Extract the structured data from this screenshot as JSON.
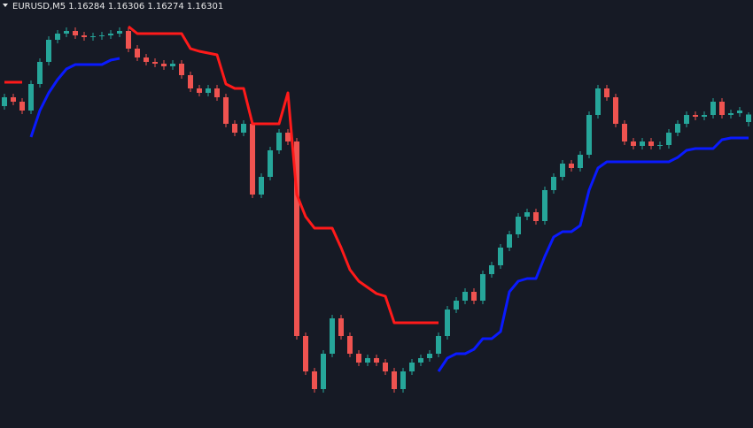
{
  "chart_data": {
    "type": "candlestick",
    "title": "EURUSD,M5  1.16284 1.16306 1.16274 1.16301",
    "up_color": "#26a69a",
    "down_color": "#ef5350",
    "ylim": [
      1.15592,
      1.1656
    ],
    "open": [
      1.1632,
      1.1634,
      1.1633,
      1.1631,
      1.1637,
      1.1642,
      1.1647,
      1.16484,
      1.1649,
      1.1648,
      1.16476,
      1.16478,
      1.1648,
      1.16484,
      1.1649,
      1.1645,
      1.1643,
      1.1642,
      1.16416,
      1.1641,
      1.16416,
      1.1639,
      1.1636,
      1.1635,
      1.1636,
      1.1634,
      1.1628,
      1.1626,
      1.1628,
      1.1612,
      1.1616,
      1.1622,
      1.1626,
      1.1624,
      1.158,
      1.1572,
      1.1568,
      1.1576,
      1.1584,
      1.158,
      1.1576,
      1.1574,
      1.1575,
      1.1574,
      1.1572,
      1.1568,
      1.1572,
      1.1574,
      1.1575,
      1.1576,
      1.158,
      1.1586,
      1.1588,
      1.159,
      1.1588,
      1.1594,
      1.1596,
      1.16,
      1.1603,
      1.1607,
      1.1608,
      1.1606,
      1.1613,
      1.1616,
      1.1619,
      1.1618,
      1.1621,
      1.163,
      1.1636,
      1.1634,
      1.1628,
      1.1624,
      1.1623,
      1.1624,
      1.1623,
      1.16232,
      1.1626,
      1.1628,
      1.163,
      1.16296,
      1.163,
      1.1633,
      1.163,
      1.16304,
      1.16284
    ],
    "high": [
      1.16348,
      1.16348,
      1.16338,
      1.16378,
      1.16428,
      1.16478,
      1.16492,
      1.16498,
      1.16498,
      1.16488,
      1.16486,
      1.16488,
      1.16492,
      1.16498,
      1.16498,
      1.16458,
      1.16438,
      1.16428,
      1.16424,
      1.16424,
      1.16424,
      1.16398,
      1.16368,
      1.16368,
      1.16368,
      1.16348,
      1.16288,
      1.16288,
      1.16288,
      1.16168,
      1.16228,
      1.16268,
      1.16268,
      1.16248,
      1.15808,
      1.15728,
      1.15768,
      1.15848,
      1.15848,
      1.15808,
      1.15768,
      1.15758,
      1.15758,
      1.15748,
      1.15728,
      1.15728,
      1.15748,
      1.15758,
      1.15768,
      1.15808,
      1.15868,
      1.15888,
      1.15908,
      1.15908,
      1.15948,
      1.15968,
      1.16008,
      1.16038,
      1.16078,
      1.16088,
      1.16088,
      1.16138,
      1.16168,
      1.16198,
      1.16198,
      1.16218,
      1.16308,
      1.16368,
      1.16368,
      1.16348,
      1.16288,
      1.16248,
      1.16248,
      1.16248,
      1.1624,
      1.16268,
      1.16288,
      1.16308,
      1.16308,
      1.16308,
      1.16338,
      1.16338,
      1.16312,
      1.16318,
      1.16306
    ],
    "low": [
      1.16312,
      1.16322,
      1.16302,
      1.16302,
      1.16362,
      1.16412,
      1.16462,
      1.16476,
      1.16472,
      1.16468,
      1.16468,
      1.1647,
      1.16472,
      1.16476,
      1.16442,
      1.16422,
      1.16412,
      1.16408,
      1.16402,
      1.16402,
      1.16382,
      1.16352,
      1.16342,
      1.16342,
      1.16332,
      1.16272,
      1.16252,
      1.16252,
      1.16112,
      1.16112,
      1.16152,
      1.16212,
      1.16232,
      1.15792,
      1.15712,
      1.15672,
      1.15672,
      1.15752,
      1.15792,
      1.15752,
      1.15732,
      1.15732,
      1.15732,
      1.15712,
      1.15672,
      1.15672,
      1.15712,
      1.15732,
      1.15742,
      1.15752,
      1.15792,
      1.15852,
      1.15872,
      1.15872,
      1.15872,
      1.15932,
      1.15952,
      1.15992,
      1.16022,
      1.16062,
      1.16052,
      1.16052,
      1.16122,
      1.16152,
      1.16172,
      1.16172,
      1.16202,
      1.16292,
      1.16332,
      1.16272,
      1.16232,
      1.16222,
      1.16222,
      1.16222,
      1.16222,
      1.16224,
      1.16252,
      1.16272,
      1.16288,
      1.16288,
      1.16292,
      1.16292,
      1.16292,
      1.16296,
      1.16274
    ],
    "close": [
      1.1634,
      1.1633,
      1.1631,
      1.1637,
      1.1642,
      1.1647,
      1.16484,
      1.1649,
      1.1648,
      1.16476,
      1.16478,
      1.1648,
      1.16484,
      1.1649,
      1.1645,
      1.1643,
      1.1642,
      1.16416,
      1.1641,
      1.16416,
      1.1639,
      1.1636,
      1.1635,
      1.1636,
      1.1634,
      1.1628,
      1.1626,
      1.1628,
      1.1612,
      1.1616,
      1.1622,
      1.1626,
      1.1624,
      1.158,
      1.1572,
      1.1568,
      1.1576,
      1.1584,
      1.158,
      1.1576,
      1.1574,
      1.1575,
      1.1574,
      1.1572,
      1.1568,
      1.1572,
      1.1574,
      1.1575,
      1.1576,
      1.158,
      1.1586,
      1.1588,
      1.159,
      1.1588,
      1.1594,
      1.1596,
      1.16,
      1.1603,
      1.1607,
      1.1608,
      1.1606,
      1.1613,
      1.1616,
      1.1619,
      1.1618,
      1.1621,
      1.163,
      1.1636,
      1.1634,
      1.1628,
      1.1624,
      1.1623,
      1.1624,
      1.1623,
      1.16232,
      1.1626,
      1.1628,
      1.163,
      1.16296,
      1.163,
      1.1633,
      1.163,
      1.16304,
      1.1631,
      1.16301
    ],
    "series": [
      {
        "color": "#ff1a1a",
        "values": [
          1.16374,
          1.16374,
          1.16374,
          null,
          null,
          null,
          null,
          null,
          null,
          null,
          null,
          null,
          null,
          null,
          1.165,
          1.16484,
          1.16484,
          1.16484,
          1.16484,
          1.16484,
          1.16484,
          1.1645,
          1.16444,
          1.1644,
          1.16436,
          1.1637,
          1.1636,
          1.1636,
          1.1628,
          1.1628,
          1.1628,
          1.1628,
          1.1635,
          1.1612,
          1.1607,
          1.16044,
          1.16044,
          1.16044,
          1.16,
          1.1595,
          1.15924,
          1.1591,
          1.15896,
          1.1589,
          1.1583,
          1.1583,
          1.1583,
          1.1583,
          1.1583,
          1.1583,
          null,
          null,
          null,
          null,
          null,
          null,
          null,
          null,
          null,
          null,
          null,
          null,
          null,
          null,
          null,
          null,
          null,
          null,
          null,
          null,
          null,
          null,
          null,
          null,
          null,
          null,
          null,
          null,
          null,
          null,
          null,
          null,
          null,
          null,
          null
        ]
      },
      {
        "color": "#0a1aff",
        "values": [
          null,
          null,
          null,
          1.1625,
          1.1631,
          1.1635,
          1.1638,
          1.16404,
          1.16414,
          1.16414,
          1.16414,
          1.16414,
          1.16424,
          1.16428,
          null,
          null,
          null,
          null,
          null,
          null,
          null,
          null,
          null,
          null,
          null,
          null,
          null,
          null,
          null,
          null,
          null,
          null,
          null,
          null,
          null,
          null,
          null,
          null,
          null,
          null,
          null,
          null,
          null,
          null,
          null,
          null,
          null,
          null,
          null,
          1.1572,
          1.1575,
          1.1576,
          1.1576,
          1.1577,
          1.15794,
          1.15794,
          1.1581,
          1.159,
          1.15924,
          1.1593,
          1.1593,
          1.1598,
          1.16024,
          1.16036,
          1.16036,
          1.1605,
          1.1613,
          1.1618,
          1.16194,
          1.16194,
          1.16194,
          1.16194,
          1.16194,
          1.16194,
          1.16194,
          1.16194,
          1.16204,
          1.1622,
          1.16224,
          1.16224,
          1.16224,
          1.16244,
          1.16248,
          1.16248,
          1.16248
        ]
      }
    ]
  }
}
